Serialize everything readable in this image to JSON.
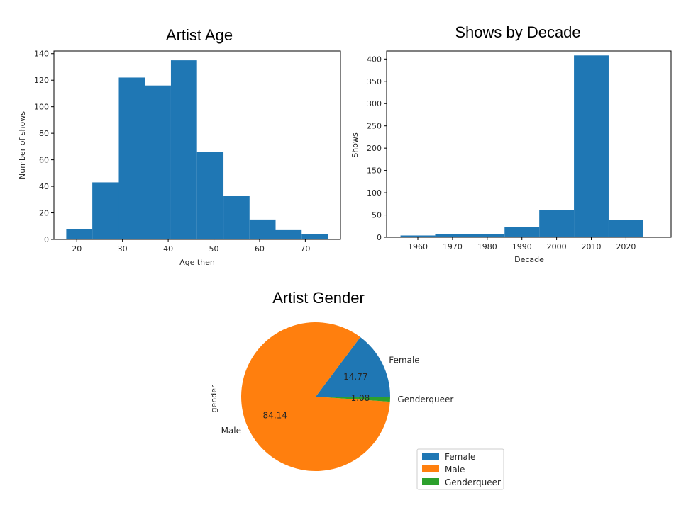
{
  "chart_data": [
    {
      "type": "bar",
      "subtype": "histogram",
      "title": "Artist Age",
      "xlabel": "Age then",
      "ylabel": "Number of shows",
      "color": "#1f77b4",
      "bin_edges": [
        17.7,
        23.4,
        29.2,
        34.9,
        40.6,
        46.3,
        52.1,
        57.8,
        63.5,
        69.2,
        75.0
      ],
      "values": [
        8,
        43,
        122,
        116,
        135,
        66,
        33,
        15,
        7,
        4
      ],
      "xlim": [
        15.0,
        77.7
      ],
      "ylim": [
        0,
        142
      ],
      "xticks": [
        20,
        30,
        40,
        50,
        60,
        70
      ],
      "yticks": [
        0,
        20,
        40,
        60,
        80,
        100,
        120,
        140
      ],
      "grid": false
    },
    {
      "type": "bar",
      "subtype": "histogram",
      "title": "Shows by Decade",
      "xlabel": "Decade",
      "ylabel": "Shows",
      "color": "#1f77b4",
      "bin_edges": [
        1955,
        1965,
        1975,
        1985,
        1995,
        2005,
        2015,
        2025
      ],
      "values": [
        4,
        7,
        7,
        23,
        61,
        408,
        39
      ],
      "xlim": [
        1951,
        2033
      ],
      "ylim": [
        0,
        418
      ],
      "xticks": [
        1960,
        1970,
        1980,
        1990,
        2000,
        2010,
        2020
      ],
      "yticks": [
        0,
        50,
        100,
        150,
        200,
        250,
        300,
        350,
        400
      ],
      "grid": false
    },
    {
      "type": "pie",
      "title": "Artist Gender",
      "ylabel": "gender",
      "labels": [
        "Female",
        "Male",
        "Genderqueer"
      ],
      "values": [
        14.77,
        84.14,
        1.08
      ],
      "autopct_labels": [
        "14.77",
        "84.14",
        "1.08"
      ],
      "colors": [
        "#1f77b4",
        "#ff7f0e",
        "#2ca02c"
      ],
      "legend": {
        "position": "lower-right",
        "entries": [
          "Female",
          "Male",
          "Genderqueer"
        ]
      }
    }
  ]
}
